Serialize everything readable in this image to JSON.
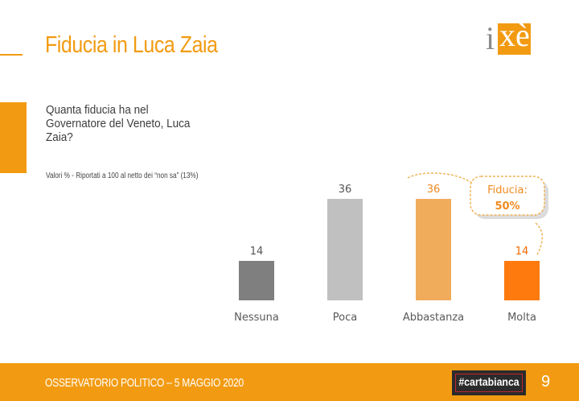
{
  "title": "Fiducia in Luca Zaia",
  "logo": {
    "text_i": "i",
    "text_xe": "xè"
  },
  "question": "Quanta fiducia ha nel Governatore del Veneto, Luca Zaia?",
  "note": "Valori % - Riportati a 100 al netto dei “non sa” (13%)",
  "callout": {
    "label": "Fiducia:",
    "value": "50%"
  },
  "footer": {
    "text": "OSSERVATORIO POLITICO – 5 MAGGIO 2020",
    "badge": "#cartabianca",
    "page": "9"
  },
  "colors": {
    "accent": "#f29b12"
  },
  "chart_data": {
    "type": "bar",
    "categories": [
      "Nessuna",
      "Poca",
      "Abbastanza",
      "Molta"
    ],
    "values": [
      14,
      36,
      36,
      14
    ],
    "colors": [
      "#7f7f7f",
      "#c0c0c0",
      "#f0ab5b",
      "#ff7a0e"
    ],
    "label_colors": [
      "#555555",
      "#555555",
      "#ef8a1f",
      "#ef6a00"
    ],
    "ylim": [
      0,
      36
    ],
    "title": "",
    "xlabel": "",
    "ylabel": ""
  }
}
